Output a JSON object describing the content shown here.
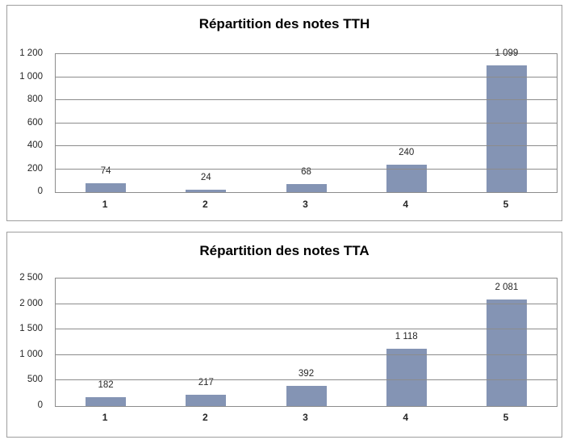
{
  "colors": {
    "bar_fill": "#8494b4",
    "gridline": "#8c8c8c",
    "panel_border": "#9e9e9e",
    "text": "#262626",
    "title_text": "#000000",
    "background": "#ffffff"
  },
  "chart_data": [
    {
      "type": "bar",
      "title": "Répartition des notes TTH",
      "categories": [
        "1",
        "2",
        "3",
        "4",
        "5"
      ],
      "values": [
        74,
        24,
        68,
        240,
        1099
      ],
      "value_labels": [
        "74",
        "24",
        "68",
        "240",
        "1 099"
      ],
      "xlabel": "",
      "ylabel": "",
      "ylim": [
        0,
        1200
      ],
      "ytick_step": 200,
      "ytick_labels": [
        "0",
        "200",
        "400",
        "600",
        "800",
        "1 000",
        "1 200"
      ],
      "grid": true,
      "legend": false,
      "data_labels_position": "outside-end"
    },
    {
      "type": "bar",
      "title": "Répartition des notes TTA",
      "categories": [
        "1",
        "2",
        "3",
        "4",
        "5"
      ],
      "values": [
        182,
        217,
        392,
        1118,
        2081
      ],
      "value_labels": [
        "182",
        "217",
        "392",
        "1 118",
        "2 081"
      ],
      "xlabel": "",
      "ylabel": "",
      "ylim": [
        0,
        2500
      ],
      "ytick_step": 500,
      "ytick_labels": [
        "0",
        "500",
        "1 000",
        "1 500",
        "2 000",
        "2 500"
      ],
      "grid": true,
      "legend": false,
      "data_labels_position": "outside-end"
    }
  ]
}
